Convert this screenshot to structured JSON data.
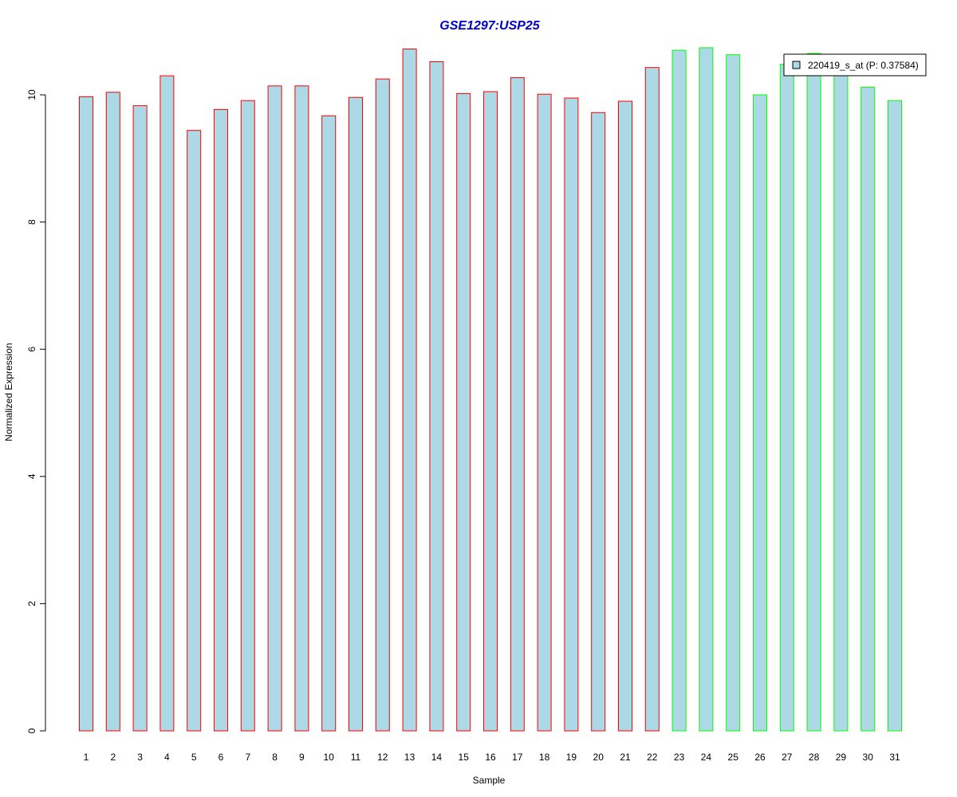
{
  "chart_data": {
    "type": "bar",
    "title": "GSE1297:USP25",
    "xlabel": "Sample",
    "ylabel": "Normalized Expression",
    "ylim": [
      0,
      10.8
    ],
    "y_ticks": [
      0,
      2,
      4,
      6,
      8,
      10
    ],
    "grid": false,
    "legend_placement": "top-right",
    "categories": [
      "1",
      "2",
      "3",
      "4",
      "5",
      "6",
      "7",
      "8",
      "9",
      "10",
      "11",
      "12",
      "13",
      "14",
      "15",
      "16",
      "17",
      "18",
      "19",
      "20",
      "21",
      "22",
      "23",
      "24",
      "25",
      "26",
      "27",
      "28",
      "29",
      "30",
      "31"
    ],
    "series": [
      {
        "name": "220419_s_at (P: 0.37584)",
        "values": [
          9.97,
          10.04,
          9.83,
          10.3,
          9.44,
          9.77,
          9.91,
          10.14,
          10.14,
          9.67,
          9.96,
          10.25,
          10.72,
          10.52,
          10.02,
          10.05,
          10.27,
          10.01,
          9.95,
          9.72,
          9.9,
          10.43,
          10.7,
          10.74,
          10.63,
          10.0,
          10.48,
          10.65,
          10.4,
          10.12,
          9.91
        ]
      }
    ],
    "groups": [
      {
        "samples": [
          1,
          22
        ],
        "border_color": "#ff0000"
      },
      {
        "samples": [
          23,
          31
        ],
        "border_color": "#00ff00"
      }
    ],
    "colors": {
      "bar_fill": "#add8e6",
      "title": "#0000cd",
      "axis": "#000000",
      "legend_border": "#000000"
    }
  }
}
